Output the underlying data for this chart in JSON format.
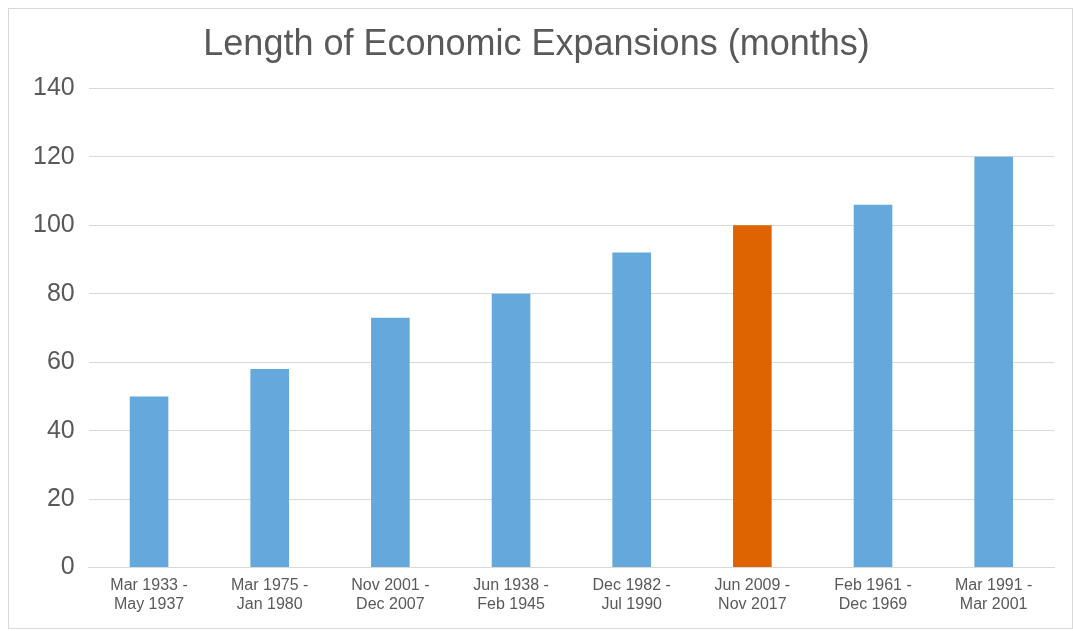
{
  "chart_data": {
    "type": "bar",
    "title": "Length of Economic Expansions (months)",
    "categories": [
      "Mar 1933 - May 1937",
      "Mar 1975 - Jan 1980",
      "Nov 2001 - Dec 2007",
      "Jun 1938 - Feb 1945",
      "Dec 1982 - Jul 1990",
      "Jun 2009 - Nov 2017",
      "Feb 1961 - Dec 1969",
      "Mar 1991 - Mar 2001"
    ],
    "values": [
      50,
      58,
      73,
      80,
      92,
      100,
      106,
      120
    ],
    "colors": [
      "#64a8dc",
      "#64a8dc",
      "#64a8dc",
      "#64a8dc",
      "#64a8dc",
      "#dd6400",
      "#64a8dc",
      "#64a8dc"
    ],
    "ylim": [
      0,
      140
    ],
    "yticks": [
      0,
      20,
      40,
      60,
      80,
      100,
      120,
      140
    ],
    "grid": "y",
    "legend": false
  }
}
